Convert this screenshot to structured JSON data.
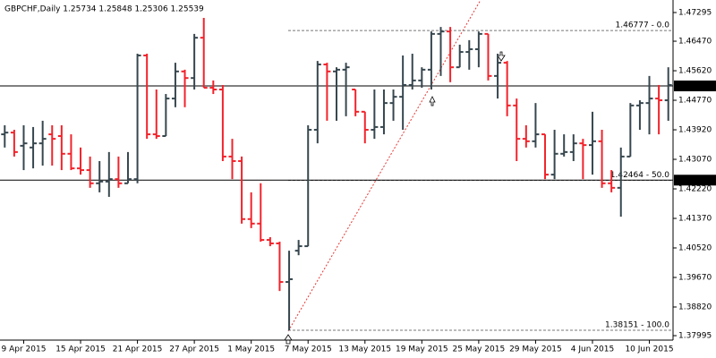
{
  "chart_data": {
    "type": "ohlc",
    "title": "GBPCHF,Daily 1.25734 1.25848 1.25306 1.25539",
    "up_color": "#37474f",
    "down_color": "#f2232b",
    "categories": [
      null,
      null,
      "9 Apr 2015",
      null,
      null,
      null,
      null,
      null,
      "15 Apr 2015",
      null,
      null,
      null,
      null,
      null,
      "21 Apr 2015",
      null,
      null,
      null,
      null,
      null,
      "27 Apr 2015",
      null,
      null,
      null,
      null,
      null,
      "1 May 2015",
      null,
      null,
      null,
      null,
      null,
      "7 May 2015",
      null,
      null,
      null,
      null,
      null,
      "13 May 2015",
      null,
      null,
      null,
      null,
      null,
      "19 May 2015",
      null,
      null,
      null,
      null,
      null,
      "25 May 2015",
      null,
      null,
      null,
      null,
      null,
      "29 May 2015",
      null,
      null,
      null,
      null,
      null,
      "4 Jun 2015",
      null,
      null,
      null,
      null,
      null,
      "10 Jun 2015",
      null,
      null
    ],
    "open": [
      1.4379,
      1.4384,
      1.4346,
      1.4341,
      1.4353,
      1.4379,
      1.4374,
      1.4323,
      1.4281,
      1.4276,
      1.4238,
      1.4243,
      1.425,
      1.4238,
      1.425,
      1.4606,
      1.4379,
      1.4374,
      1.4482,
      1.456,
      1.4541,
      1.4657,
      1.4513,
      1.4508,
      1.4315,
      1.4302,
      1.4135,
      1.4122,
      1.4075,
      1.4065,
      1.3954,
      1.4044,
      1.4057,
      1.4392,
      1.458,
      1.456,
      1.4565,
      1.4508,
      1.4444,
      1.4392,
      1.44,
      1.4469,
      1.4487,
      1.4521,
      1.4534,
      1.4565,
      1.4668,
      1.4675,
      1.4572,
      1.4616,
      1.4624,
      1.4668,
      1.4547,
      1.4585,
      1.4462,
      1.4366,
      1.4359,
      1.4379,
      1.4263,
      1.4323,
      1.4328,
      1.4353,
      1.4348,
      1.4359,
      1.4238,
      1.4225,
      1.4315,
      1.4462,
      1.4469,
      1.4482,
      1.4477
    ],
    "high": [
      1.4405,
      1.4392,
      1.4405,
      1.44,
      1.4418,
      1.4405,
      1.4405,
      1.4379,
      1.4341,
      1.4315,
      1.4302,
      1.4328,
      1.4315,
      1.4328,
      1.4611,
      1.4611,
      1.4508,
      1.4495,
      1.4585,
      1.4565,
      1.4668,
      1.4714,
      1.4534,
      1.4521,
      1.4366,
      1.4315,
      1.4212,
      1.4238,
      1.4083,
      1.407,
      1.4044,
      1.4075,
      1.4405,
      1.459,
      1.4585,
      1.4572,
      1.4585,
      1.4508,
      1.4444,
      1.4508,
      1.4508,
      1.4508,
      1.4606,
      1.4611,
      1.4572,
      1.4675,
      1.4688,
      1.4688,
      1.4637,
      1.465,
      1.4675,
      1.4668,
      1.4611,
      1.459,
      1.4482,
      1.4405,
      1.4469,
      1.4379,
      1.4392,
      1.4379,
      1.4379,
      1.4366,
      1.4444,
      1.4392,
      1.4276,
      1.4341,
      1.4469,
      1.4477,
      1.4547,
      1.4521,
      1.4572
    ],
    "low": [
      1.4341,
      1.4315,
      1.4276,
      1.4281,
      1.4289,
      1.4289,
      1.4276,
      1.4276,
      1.4263,
      1.4225,
      1.4212,
      1.4199,
      1.4225,
      1.4238,
      1.4238,
      1.4366,
      1.4366,
      1.4374,
      1.4457,
      1.4457,
      1.4508,
      1.4513,
      1.4495,
      1.4302,
      1.425,
      1.4122,
      1.4109,
      1.407,
      1.4057,
      1.3928,
      1.3815,
      1.4031,
      1.4057,
      1.4353,
      1.4418,
      1.4418,
      1.4431,
      1.4431,
      1.4353,
      1.4366,
      1.4379,
      1.4418,
      1.4392,
      1.4508,
      1.4513,
      1.4508,
      1.4547,
      1.4529,
      1.4572,
      1.4565,
      1.4572,
      1.4534,
      1.4482,
      1.4431,
      1.4302,
      1.4341,
      1.4341,
      1.425,
      1.425,
      1.4315,
      1.4302,
      1.425,
      1.4263,
      1.4225,
      1.4212,
      1.4142,
      1.4315,
      1.4392,
      1.4379,
      1.4379,
      1.4418
    ],
    "close": [
      1.4384,
      1.4328,
      1.4353,
      1.4353,
      1.4366,
      1.4366,
      1.4323,
      1.4281,
      1.4276,
      1.4238,
      1.4243,
      1.425,
      1.4238,
      1.425,
      1.4606,
      1.4379,
      1.4374,
      1.4482,
      1.456,
      1.4541,
      1.4657,
      1.4513,
      1.4508,
      1.4315,
      1.4302,
      1.4135,
      1.4122,
      1.4075,
      1.4065,
      1.3954,
      1.3962,
      1.4057,
      1.4392,
      1.458,
      1.456,
      1.4565,
      1.4572,
      1.4444,
      1.4392,
      1.44,
      1.4469,
      1.4487,
      1.4521,
      1.4534,
      1.4565,
      1.4668,
      1.4675,
      1.4572,
      1.4616,
      1.4624,
      1.4668,
      1.4547,
      1.4585,
      1.4462,
      1.4366,
      1.4359,
      1.4379,
      1.4263,
      1.4323,
      1.4328,
      1.4353,
      1.4348,
      1.4359,
      1.4238,
      1.4225,
      1.4315,
      1.4462,
      1.4469,
      1.4482,
      1.4477,
      1.4521
    ],
    "ylim": [
      1.37867,
      1.47656
    ],
    "yticks": [
      1.47295,
      {
        "value": 1.4647,
        "label": "1.46470"
      },
      {
        "value": 1.4562,
        "label": "1.45620"
      },
      {
        "value": 1.4477,
        "label": "1.44770"
      },
      {
        "value": 1.4392,
        "label": "1.43920"
      },
      {
        "value": 1.4307,
        "label": "1.43070"
      },
      {
        "value": 1.4222,
        "label": "1.42220"
      },
      {
        "value": 1.4137,
        "label": "1.41370"
      },
      {
        "value": 1.4052,
        "label": "1.40520"
      },
      {
        "value": 1.3967,
        "label": "1.39670"
      },
      {
        "value": 1.3882,
        "label": "1.38820"
      },
      1.37995
    ],
    "hlines": [
      1.45183,
      1.42471
    ],
    "fib_levels": [
      {
        "value": 1.46777,
        "label": "1.46777 - 0.0"
      },
      {
        "value": 1.42464,
        "label": "1.42464 - 50.0"
      },
      {
        "value": 1.38151,
        "label": "1.38151 - 100.0"
      }
    ]
  }
}
